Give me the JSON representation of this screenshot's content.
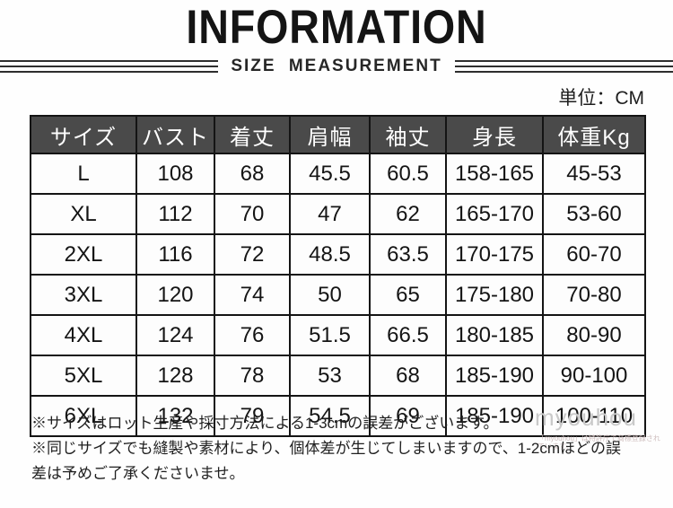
{
  "header": {
    "title": "INFORMATION",
    "subtitle": "SIZE MEASUREMENT",
    "unit_label": "単位：CM"
  },
  "table": {
    "columns": [
      "サイズ",
      "バスト",
      "着丈",
      "肩幅",
      "袖丈",
      "身長",
      "体重Kg"
    ],
    "rows": [
      [
        "L",
        "108",
        "68",
        "45.5",
        "60.5",
        "158-165",
        "45-53"
      ],
      [
        "XL",
        "112",
        "70",
        "47",
        "62",
        "165-170",
        "53-60"
      ],
      [
        "2XL",
        "116",
        "72",
        "48.5",
        "63.5",
        "170-175",
        "60-70"
      ],
      [
        "3XL",
        "120",
        "74",
        "50",
        "65",
        "175-180",
        "70-80"
      ],
      [
        "4XL",
        "124",
        "76",
        "51.5",
        "66.5",
        "180-185",
        "80-90"
      ],
      [
        "5XL",
        "128",
        "78",
        "53",
        "68",
        "185-190",
        "90-100"
      ],
      [
        "6XL",
        "132",
        "79",
        "54.5",
        "69",
        "185-190",
        "100-110"
      ]
    ]
  },
  "notes": [
    "※サイズはロット生産や採寸方法による1-3cmの誤差がございます。",
    "※同じサイズでも縫製や素材により、個体差が生じてしまいますので、1-2cmほどの誤",
    "差は予めご了承くださいませ。"
  ],
  "watermark": {
    "brand": "myouhou",
    "small_print": "「myouhou」は特許庁で商標登録され",
    "small_print2": "ています。"
  },
  "colors": {
    "header_bg": "#4a4a4a",
    "header_text": "#ffffff",
    "border": "#141414",
    "body_text": "#141414",
    "watermark": "#c9c9c9"
  }
}
